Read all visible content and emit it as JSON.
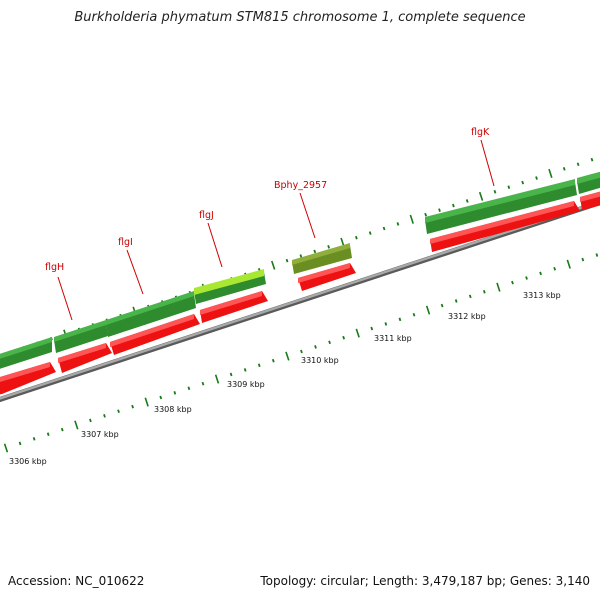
{
  "header": {
    "title": "Burkholderia phymatum STM815 chromosome 1, complete sequence"
  },
  "footer": {
    "accession": "Accession: NC_010622",
    "summary": "Topology: circular; Length: 3,479,187 bp; Genes: 3,140"
  },
  "colors": {
    "forward_cds": "#2e8b2e",
    "forward_cds_light": "#3aa83a",
    "highlight_cds": "#7cd21a",
    "olive_cds": "#6b8e23",
    "reverse_cds": "#ee1111",
    "reverse_cds_light": "#ff4444",
    "backbone": "#8a8a8a",
    "tick": "#1a7a1a",
    "label": "#cc0000"
  },
  "genes": [
    {
      "name": "flgH",
      "role": "labeled"
    },
    {
      "name": "flgI",
      "role": "labeled"
    },
    {
      "name": "flgJ",
      "role": "labeled"
    },
    {
      "name": "Bphy_2957",
      "role": "labeled"
    },
    {
      "name": "flgK",
      "role": "labeled"
    }
  ],
  "scale_labels": [
    "3306 kbp",
    "3307 kbp",
    "3308 kbp",
    "3309 kbp",
    "3310 kbp",
    "3311 kbp",
    "3312 kbp",
    "3313 kbp"
  ]
}
